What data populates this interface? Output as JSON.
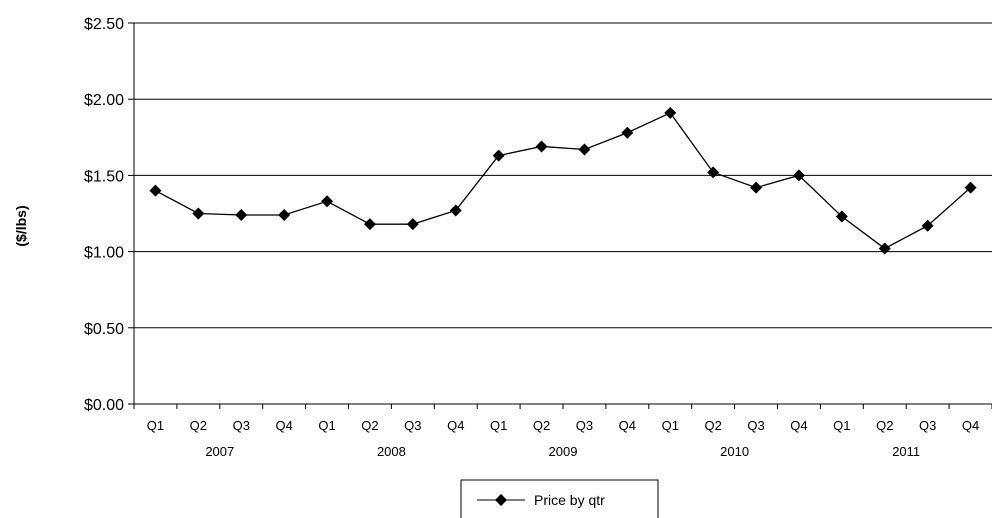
{
  "chart_data": {
    "type": "line",
    "title": "",
    "xlabel": "",
    "ylabel": "($/lbs)",
    "ylim": [
      0,
      2.5
    ],
    "yticks": [
      "$0.00",
      "$0.50",
      "$1.00",
      "$1.50",
      "$2.00",
      "$2.50"
    ],
    "ytick_values": [
      0,
      0.5,
      1.0,
      1.5,
      2.0,
      2.5
    ],
    "grid": true,
    "legend_placement": "bottom-center",
    "categories": [
      "Q1",
      "Q2",
      "Q3",
      "Q4",
      "Q1",
      "Q2",
      "Q3",
      "Q4",
      "Q1",
      "Q2",
      "Q3",
      "Q4",
      "Q1",
      "Q2",
      "Q3",
      "Q4",
      "Q1",
      "Q2",
      "Q3",
      "Q4"
    ],
    "groups": [
      {
        "label": "2007",
        "count": 4
      },
      {
        "label": "2008",
        "count": 4
      },
      {
        "label": "2009",
        "count": 4
      },
      {
        "label": "2010",
        "count": 4
      },
      {
        "label": "2011",
        "count": 4
      }
    ],
    "series": [
      {
        "name": "Price by qtr",
        "color": "#000000",
        "marker": "diamond",
        "values": [
          1.4,
          1.25,
          1.24,
          1.24,
          1.33,
          1.18,
          1.18,
          1.27,
          1.63,
          1.69,
          1.67,
          1.78,
          1.91,
          1.52,
          1.42,
          1.5,
          1.23,
          1.02,
          1.17,
          1.42
        ]
      }
    ]
  }
}
